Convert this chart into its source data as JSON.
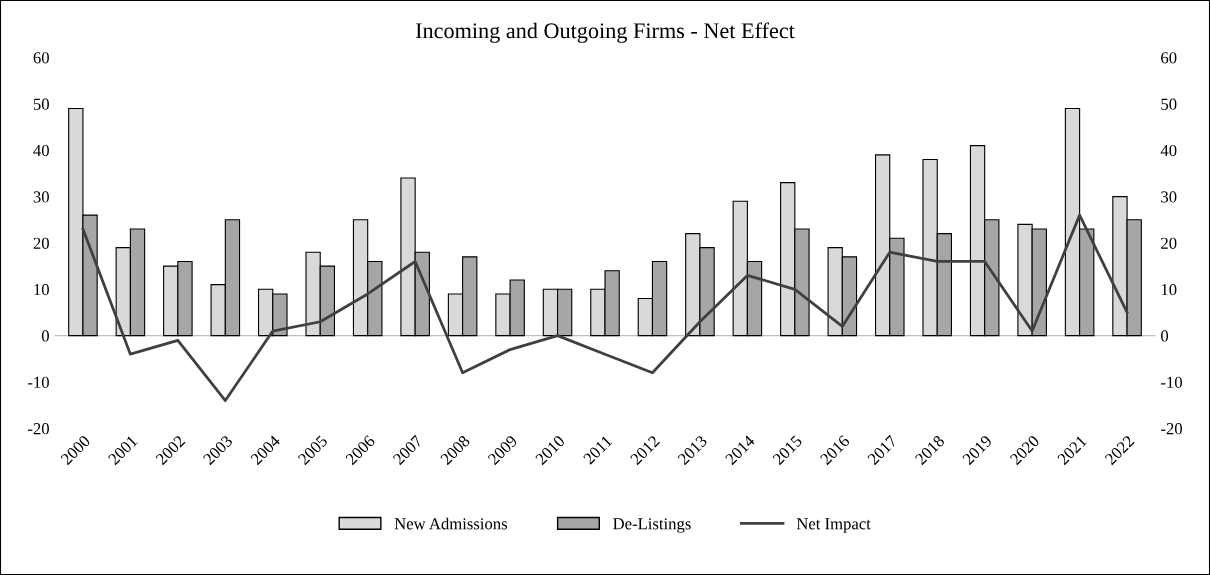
{
  "chart_data": {
    "type": "bar",
    "title": "Incoming and Outgoing Firms - Net Effect",
    "categories": [
      "2000",
      "2001",
      "2002",
      "2003",
      "2004",
      "2005",
      "2006",
      "2007",
      "2008",
      "2009",
      "2010",
      "2011",
      "2012",
      "2013",
      "2014",
      "2015",
      "2016",
      "2017",
      "2018",
      "2019",
      "2020",
      "2021",
      "2022"
    ],
    "series": [
      {
        "name": "New Admissions",
        "color": "#d9d9d9",
        "values": [
          49,
          19,
          15,
          11,
          10,
          18,
          25,
          34,
          9,
          9,
          10,
          10,
          8,
          22,
          29,
          33,
          19,
          39,
          38,
          41,
          24,
          49,
          30
        ]
      },
      {
        "name": "De-Listings",
        "color": "#a6a6a6",
        "values": [
          26,
          23,
          16,
          25,
          9,
          15,
          16,
          18,
          17,
          12,
          10,
          14,
          16,
          19,
          16,
          23,
          17,
          21,
          22,
          25,
          23,
          23,
          25
        ]
      },
      {
        "name": "Net Impact",
        "type": "line",
        "color": "#404040",
        "values": [
          23,
          -4,
          -1,
          -14,
          1,
          3,
          9,
          16,
          -8,
          -3,
          0,
          -4,
          -8,
          3,
          13,
          10,
          2,
          18,
          16,
          16,
          1,
          26,
          5
        ]
      }
    ],
    "ylim": [
      -20,
      60
    ],
    "yticks": [
      -20,
      -10,
      0,
      10,
      20,
      30,
      40,
      50,
      60
    ],
    "y2lim": [
      -20,
      60
    ],
    "y2ticks": [
      -20,
      -10,
      0,
      10,
      20,
      30,
      40,
      50,
      60
    ],
    "ref_lines": [
      {
        "axis": "y",
        "value": 0,
        "color": "#bfbfbf"
      }
    ],
    "grid": false,
    "legend": "bottom"
  }
}
